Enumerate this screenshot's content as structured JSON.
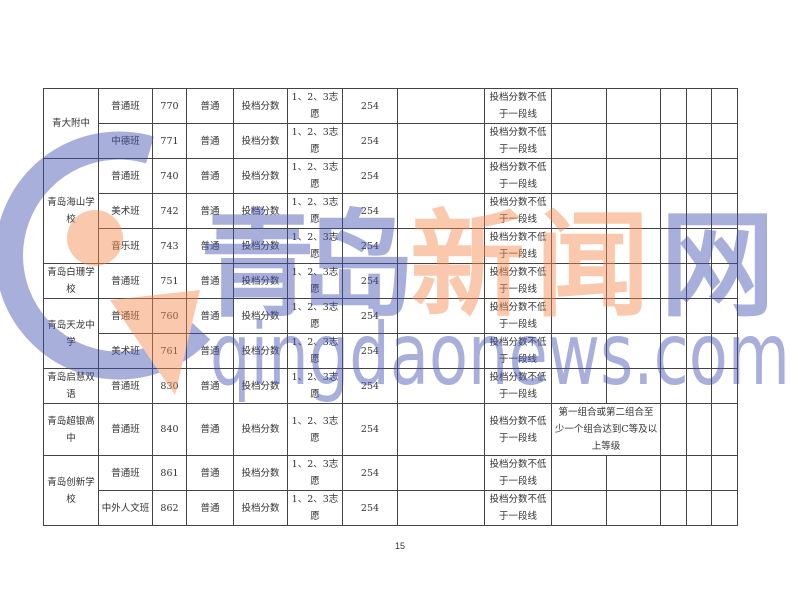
{
  "rows": [
    {
      "school": "青大附中",
      "cls": "普通班",
      "code": "770",
      "type": "普通",
      "method": "投档分数",
      "choice": "1、2、3志愿",
      "score": "254",
      "req": "投档分数不低于一段线",
      "note": ""
    },
    {
      "cls": "中德班",
      "code": "771",
      "type": "普通",
      "method": "投档分数",
      "choice": "1、2、3志愿",
      "score": "254",
      "req": "投档分数不低于一段线",
      "note": ""
    },
    {
      "school": "青岛海山学校",
      "cls": "普通班",
      "code": "740",
      "type": "普通",
      "method": "投档分数",
      "choice": "1、2、3志愿",
      "score": "254",
      "req": "投档分数不低于一段线",
      "note": ""
    },
    {
      "cls": "美术班",
      "code": "742",
      "type": "普通",
      "method": "投档分数",
      "choice": "1、2、3志愿",
      "score": "254",
      "req": "投档分数不低于一段线",
      "note": ""
    },
    {
      "cls": "音乐班",
      "code": "743",
      "type": "普通",
      "method": "投档分数",
      "choice": "1、2、3志愿",
      "score": "254",
      "req": "投档分数不低于一段线",
      "note": ""
    },
    {
      "school": "青岛白珊学校",
      "cls": "普通班",
      "code": "751",
      "type": "普通",
      "method": "投档分数",
      "choice": "1、2、3志愿",
      "score": "254",
      "req": "投档分数不低于一段线",
      "note": ""
    },
    {
      "school": "青岛天龙中学",
      "cls": "普通班",
      "code": "760",
      "type": "普通",
      "method": "投档分数",
      "choice": "1、2、3志愿",
      "score": "254",
      "req": "投档分数不低于一段线",
      "note": ""
    },
    {
      "cls": "美术班",
      "code": "761",
      "type": "普通",
      "method": "投档分数",
      "choice": "1、2、3志愿",
      "score": "254",
      "req": "投档分数不低于一段线",
      "note": ""
    },
    {
      "school": "青岛启慧双语",
      "cls": "普通班",
      "code": "830",
      "type": "普通",
      "method": "投档分数",
      "choice": "1、2、3志愿",
      "score": "254",
      "req": "投档分数不低于一段线",
      "note": ""
    },
    {
      "school": "青岛超银高中",
      "cls": "普通班",
      "code": "840",
      "type": "普通",
      "method": "投档分数",
      "choice": "1、2、3志愿",
      "score": "254",
      "req": "投档分数不低于一段线",
      "note": "第一组合或第二组合至少一个组合达到C等及以上等级"
    },
    {
      "school": "青岛创新学校",
      "cls": "普通班",
      "code": "861",
      "type": "普通",
      "method": "投档分数",
      "choice": "1、2、3志愿",
      "score": "254",
      "req": "投档分数不低于一段线",
      "note": ""
    },
    {
      "cls": "中外人文班",
      "code": "862",
      "type": "普通",
      "method": "投档分数",
      "choice": "1、2、3志愿",
      "score": "254",
      "req": "投档分数不低于一段线",
      "note": ""
    }
  ],
  "watermark": {
    "cn": [
      "青",
      "岛",
      "新",
      "闻",
      "网"
    ],
    "url": "qingdaonews.com",
    "colors": {
      "blue": "#3f4fb0",
      "orange": "#f58a4b"
    }
  },
  "page_number": "15"
}
